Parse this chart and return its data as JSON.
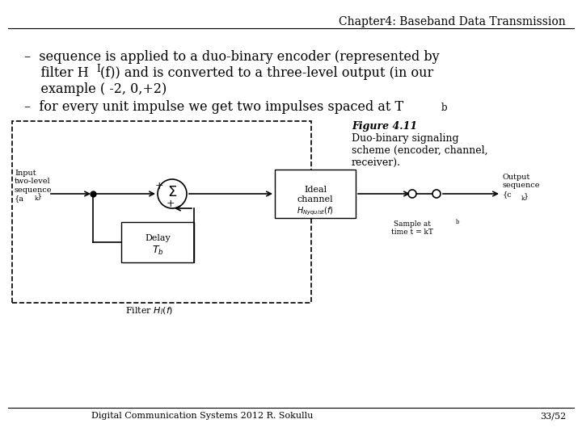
{
  "title": "Chapter4: Baseband Data Transmission",
  "footer_left": "Digital Communication Systems 2012 R. Sokullu",
  "footer_right": "33/52",
  "bullet1_line1": "–  sequence is applied to a duo-binary encoder (represented by",
  "bullet1_line2": "    filter H",
  "bullet1_line2b": "(f)) and is converted to a three-level output (in our",
  "bullet1_line3": "    example ( -2, 0,+2)",
  "bullet2_line1": "–  for every unit impulse we get two impulses spaced at T",
  "fig_caption_line1": "Figure 4.11",
  "fig_caption_line2": "Duo-binary signaling",
  "fig_caption_line3": "scheme (encoder, channel,",
  "fig_caption_line4": "receiver).",
  "bg_color": "#ffffff",
  "text_color": "#000000",
  "box_color": "#000000",
  "diagram_bg": "#ffffff"
}
